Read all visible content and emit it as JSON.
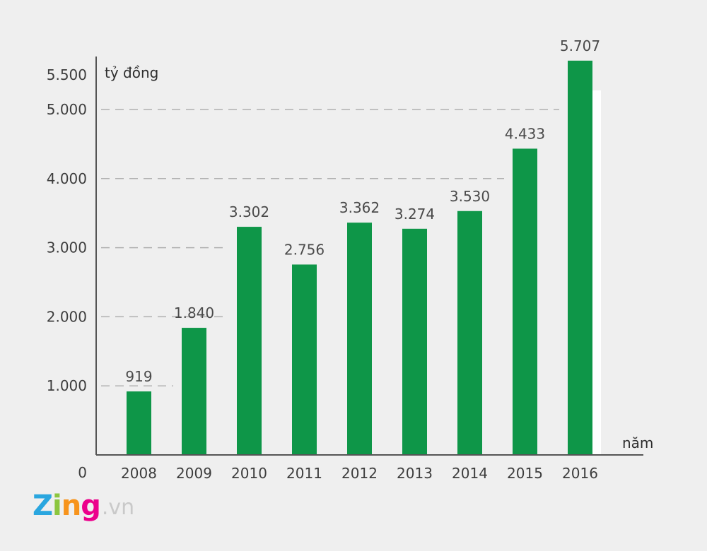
{
  "chart_data": {
    "type": "bar",
    "categories": [
      "2008",
      "2009",
      "2010",
      "2011",
      "2012",
      "2013",
      "2014",
      "2015",
      "2016"
    ],
    "values": [
      919,
      1840,
      3302,
      2756,
      3362,
      3274,
      3530,
      4433,
      5707
    ],
    "value_labels": [
      "919",
      "1.840",
      "3.302",
      "2.756",
      "3.362",
      "3.274",
      "3.530",
      "4.433",
      "5.707"
    ],
    "yticks": [
      {
        "value": 0,
        "label": "0"
      },
      {
        "value": 1000,
        "label": "1.000"
      },
      {
        "value": 2000,
        "label": "2.000"
      },
      {
        "value": 3000,
        "label": "3.000"
      },
      {
        "value": 4000,
        "label": "4.000"
      },
      {
        "value": 5000,
        "label": "5.000"
      },
      {
        "value": 5500,
        "label": "5.500"
      }
    ],
    "gridlines": [
      1000,
      2000,
      3000,
      4000,
      5000
    ],
    "ylabel": "tỷ đồng",
    "xlabel": "năm",
    "ylim": [
      0,
      5500
    ],
    "colors": {
      "bar": "#0e9648",
      "axis": "#555555",
      "grid": "#b0b0b0",
      "text": "#3d3d3d"
    }
  },
  "logo": {
    "brand": "Zing",
    "suffix": ".vn",
    "letter_colors": [
      "#2aa6df",
      "#8cc63f",
      "#f7941d",
      "#ec008c"
    ]
  }
}
